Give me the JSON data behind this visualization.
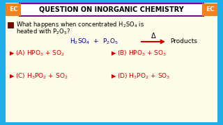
{
  "bg_outer": "#1EAEE8",
  "bg_inner": "#FEFCE8",
  "title_text": "QUESTION ON INORGANIC CHEMISTRY",
  "title_box_facecolor": "#FFFFFF",
  "title_border_color": "#7B00A0",
  "ec_box_color": "#F08020",
  "ec_text": "EC",
  "question_color": "#000000",
  "formula_color": "#00008B",
  "option_color": "#CC0000",
  "arrow_color": "#CC0000",
  "bullet_color": "#CC0000",
  "checkbox_color": "#880000",
  "products_color": "#000000"
}
